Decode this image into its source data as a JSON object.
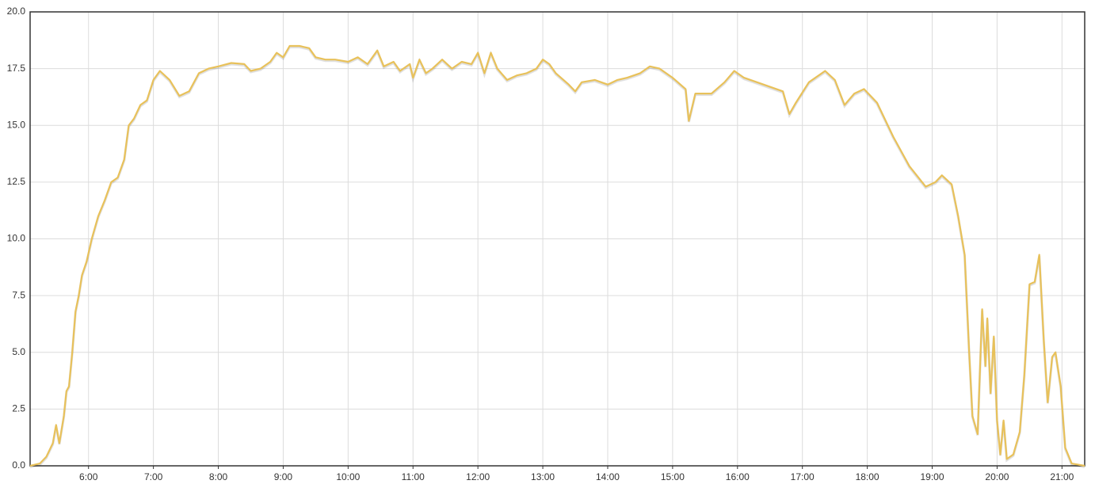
{
  "chart_data": {
    "type": "line",
    "x": [
      5.1,
      5.25,
      5.35,
      5.45,
      5.5,
      5.55,
      5.62,
      5.66,
      5.7,
      5.75,
      5.8,
      5.85,
      5.9,
      5.97,
      6.05,
      6.15,
      6.25,
      6.35,
      6.45,
      6.55,
      6.62,
      6.7,
      6.8,
      6.9,
      7.0,
      7.1,
      7.25,
      7.4,
      7.55,
      7.7,
      7.85,
      8.0,
      8.2,
      8.4,
      8.5,
      8.65,
      8.8,
      8.9,
      9.0,
      9.1,
      9.25,
      9.4,
      9.5,
      9.65,
      9.8,
      10.0,
      10.15,
      10.3,
      10.45,
      10.55,
      10.7,
      10.8,
      10.95,
      11.0,
      11.1,
      11.2,
      11.3,
      11.45,
      11.6,
      11.75,
      11.9,
      12.0,
      12.1,
      12.2,
      12.3,
      12.45,
      12.6,
      12.75,
      12.9,
      13.0,
      13.1,
      13.2,
      13.4,
      13.5,
      13.6,
      13.8,
      14.0,
      14.15,
      14.3,
      14.5,
      14.65,
      14.8,
      15.0,
      15.2,
      15.25,
      15.35,
      15.6,
      15.8,
      15.95,
      16.1,
      16.4,
      16.7,
      16.8,
      16.9,
      17.1,
      17.35,
      17.5,
      17.65,
      17.8,
      17.95,
      18.15,
      18.4,
      18.65,
      18.9,
      19.05,
      19.15,
      19.3,
      19.4,
      19.5,
      19.57,
      19.62,
      19.7,
      19.77,
      19.82,
      19.85,
      19.9,
      19.95,
      20.0,
      20.05,
      20.1,
      20.15,
      20.25,
      20.35,
      20.42,
      20.5,
      20.58,
      20.65,
      20.72,
      20.78,
      20.85,
      20.9,
      20.98,
      21.05,
      21.15,
      21.35
    ],
    "series": [
      {
        "color": "#e8c15a",
        "values": [
          0.0,
          0.1,
          0.4,
          1.0,
          1.8,
          1.0,
          2.2,
          3.3,
          3.5,
          5.0,
          6.8,
          7.5,
          8.4,
          9.0,
          10.0,
          11.0,
          11.7,
          12.5,
          12.7,
          13.5,
          15.0,
          15.3,
          15.9,
          16.1,
          17.0,
          17.4,
          17.0,
          16.3,
          16.5,
          17.3,
          17.5,
          17.6,
          17.75,
          17.7,
          17.4,
          17.5,
          17.8,
          18.2,
          18.0,
          18.5,
          18.5,
          18.4,
          18.0,
          17.9,
          17.9,
          17.8,
          18.0,
          17.7,
          18.3,
          17.6,
          17.8,
          17.4,
          17.7,
          17.1,
          17.9,
          17.3,
          17.5,
          17.9,
          17.5,
          17.8,
          17.7,
          18.2,
          17.3,
          18.2,
          17.5,
          17.0,
          17.2,
          17.3,
          17.5,
          17.9,
          17.7,
          17.3,
          16.8,
          16.5,
          16.9,
          17.0,
          16.8,
          17.0,
          17.1,
          17.3,
          17.6,
          17.5,
          17.1,
          16.6,
          15.2,
          16.4,
          16.4,
          16.9,
          17.4,
          17.1,
          16.8,
          16.5,
          15.5,
          16.0,
          16.9,
          17.4,
          17.0,
          15.9,
          16.4,
          16.6,
          16.0,
          14.5,
          13.2,
          12.3,
          12.5,
          12.8,
          12.4,
          11.0,
          9.3,
          5.0,
          2.2,
          1.4,
          6.9,
          4.4,
          6.5,
          3.2,
          5.7,
          2.0,
          0.5,
          2.0,
          0.3,
          0.5,
          1.5,
          4.0,
          8.0,
          8.1,
          9.3,
          5.5,
          2.8,
          4.8,
          5.0,
          3.5,
          0.8,
          0.1,
          0.0
        ]
      }
    ],
    "xlim": [
      5.1,
      21.35
    ],
    "xticks": [
      {
        "value": 6,
        "label": "6:00"
      },
      {
        "value": 7,
        "label": "7:00"
      },
      {
        "value": 8,
        "label": "8:00"
      },
      {
        "value": 9,
        "label": "9:00"
      },
      {
        "value": 10,
        "label": "10:00"
      },
      {
        "value": 11,
        "label": "11:00"
      },
      {
        "value": 12,
        "label": "12:00"
      },
      {
        "value": 13,
        "label": "13:00"
      },
      {
        "value": 14,
        "label": "14:00"
      },
      {
        "value": 15,
        "label": "15:00"
      },
      {
        "value": 16,
        "label": "16:00"
      },
      {
        "value": 17,
        "label": "17:00"
      },
      {
        "value": 18,
        "label": "18:00"
      },
      {
        "value": 19,
        "label": "19:00"
      },
      {
        "value": 20,
        "label": "20:00"
      },
      {
        "value": 21,
        "label": "21:00"
      }
    ],
    "ylim": [
      0,
      20
    ],
    "yticks": [
      {
        "value": 0,
        "label": "0.0"
      },
      {
        "value": 2.5,
        "label": "2.5"
      },
      {
        "value": 5,
        "label": "5.0"
      },
      {
        "value": 7.5,
        "label": "7.5"
      },
      {
        "value": 10,
        "label": "10.0"
      },
      {
        "value": 12.5,
        "label": "12.5"
      },
      {
        "value": 15,
        "label": "15.0"
      },
      {
        "value": 17.5,
        "label": "17.5"
      },
      {
        "value": 20,
        "label": "20.0"
      }
    ],
    "grid": true
  }
}
